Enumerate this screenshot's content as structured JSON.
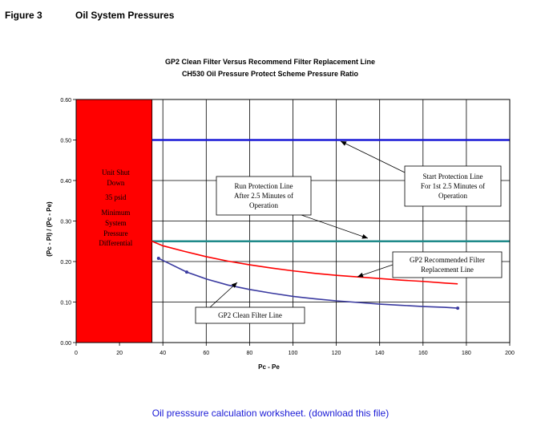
{
  "header": {
    "figure_label": "Figure 3",
    "figure_title": "Oil System Pressures"
  },
  "footer": {
    "link_text": "Oil presssure calculation worksheet. (download this file)"
  },
  "chart_data": {
    "type": "line",
    "title": "GP2 Clean Filter Versus Recommend Filter Replacement Line",
    "subtitle": "CH530 Oil Pressure Protect Scheme Pressure Ratio",
    "xlabel": "Pc - Pe",
    "ylabel": "(Pc - Pl) / (Pc - Pe)",
    "xlim": [
      0,
      200
    ],
    "ylim": [
      0,
      0.6
    ],
    "x_ticks": [
      "0",
      "20",
      "40",
      "60",
      "80",
      "100",
      "120",
      "140",
      "160",
      "180",
      "200"
    ],
    "y_ticks": [
      "0.00",
      "0.10",
      "0.20",
      "0.30",
      "0.40",
      "0.50",
      "0.60"
    ],
    "grid": true,
    "shutdown_region": {
      "x": [
        0,
        35
      ],
      "y": [
        0,
        0.6
      ],
      "color": "#ff0000",
      "lines": [
        "Unit Shut",
        "Down",
        "35 psid",
        "Minimum",
        "System",
        "Pressure",
        "Differential"
      ]
    },
    "reference_lines": [
      {
        "y": 0.5,
        "x_start": 35,
        "x_end": 200,
        "color": "#1a1ad6"
      },
      {
        "y": 0.25,
        "x_start": 35,
        "x_end": 200,
        "color": "#1f8a8a"
      }
    ],
    "series": [
      {
        "color": "#ff0000",
        "markers": false,
        "x": [
          35,
          40,
          50,
          60,
          70,
          80,
          90,
          100,
          110,
          120,
          130,
          140,
          150,
          160,
          170,
          176
        ],
        "y": [
          0.25,
          0.239,
          0.225,
          0.212,
          0.201,
          0.192,
          0.184,
          0.177,
          0.171,
          0.166,
          0.162,
          0.158,
          0.154,
          0.151,
          0.147,
          0.145
        ]
      },
      {
        "color": "#3a3aa0",
        "markers": true,
        "x": [
          38,
          51,
          60,
          70,
          80,
          90,
          100,
          110,
          120,
          130,
          140,
          150,
          160,
          170,
          176
        ],
        "y": [
          0.208,
          0.174,
          0.157,
          0.142,
          0.131,
          0.122,
          0.114,
          0.108,
          0.103,
          0.099,
          0.095,
          0.092,
          0.089,
          0.087,
          0.085
        ],
        "marker_x": [
          38,
          51,
          176
        ],
        "marker_y": [
          0.208,
          0.174,
          0.085
        ]
      }
    ],
    "annotations": [
      {
        "lines": [
          "Start Protection Line",
          "For 1st 2.5 Minutes of",
          "Operation"
        ]
      },
      {
        "lines": [
          "Run Protection Line",
          "After 2.5 Minutes of",
          "Operation"
        ]
      },
      {
        "lines": [
          "GP2 Recommended Filter",
          "Replacement Line"
        ]
      },
      {
        "lines": [
          "GP2 Clean Filter Line"
        ]
      }
    ]
  }
}
